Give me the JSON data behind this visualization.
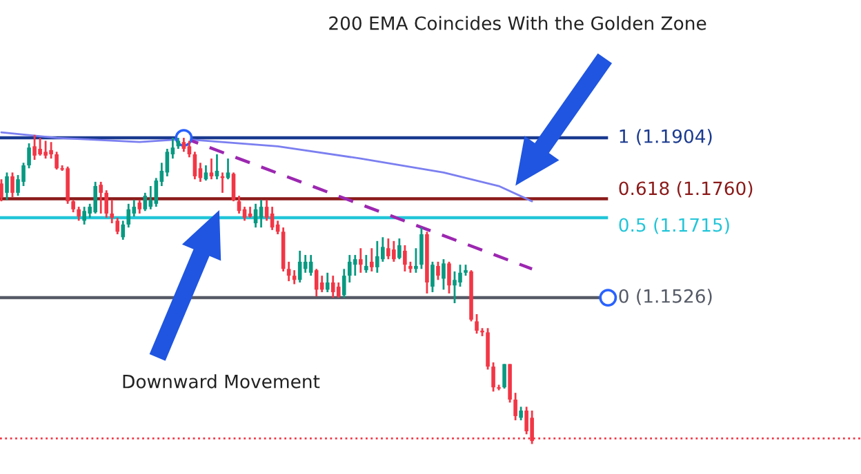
{
  "chart_data": {
    "type": "candlestick",
    "annotations": [
      "200 EMA Coincides With the Golden Zone",
      "Downward Movement"
    ],
    "categories": [
      null,
      null,
      null,
      null,
      null,
      null,
      null,
      null,
      null,
      null,
      null,
      null,
      null,
      null,
      null,
      null,
      null,
      null,
      null,
      null,
      null,
      null,
      null,
      null,
      null,
      null,
      null,
      null,
      null,
      null,
      null,
      null,
      null,
      null,
      null,
      null,
      null,
      null,
      null,
      null,
      null,
      null,
      null,
      null,
      null,
      null,
      null,
      null,
      null,
      null,
      null,
      null,
      null,
      null,
      null,
      null,
      null,
      null,
      null,
      null,
      null,
      null,
      null,
      null,
      null,
      null,
      null,
      null,
      null,
      null,
      null,
      null,
      null,
      null,
      null,
      null,
      null,
      null,
      null,
      null,
      null,
      null,
      null,
      null,
      null,
      null,
      null,
      null,
      null,
      null,
      null,
      null,
      null,
      null,
      null,
      null,
      null
    ],
    "ohlc": [
      [
        1.1796,
        1.1806,
        1.1754,
        1.1764
      ],
      [
        1.1774,
        1.1822,
        1.1757,
        1.1813
      ],
      [
        1.1813,
        1.1822,
        1.1764,
        1.1774
      ],
      [
        1.1774,
        1.1816,
        1.1767,
        1.1806
      ],
      [
        1.18,
        1.1845,
        1.179,
        1.1839
      ],
      [
        1.1839,
        1.1891,
        1.1832,
        1.1881
      ],
      [
        1.1884,
        1.1911,
        1.1852,
        1.1862
      ],
      [
        1.1878,
        1.1904,
        1.1862,
        1.1865
      ],
      [
        1.1871,
        1.1897,
        1.1855,
        1.1862
      ],
      [
        1.1875,
        1.1894,
        1.1855,
        1.1865
      ],
      [
        1.1865,
        1.1871,
        1.1829,
        1.1832
      ],
      [
        1.1832,
        1.1839,
        1.1826,
        1.1829
      ],
      [
        1.1832,
        1.1836,
        1.1748,
        1.1754
      ],
      [
        1.1754,
        1.1757,
        1.1728,
        1.1735
      ],
      [
        1.1735,
        1.1741,
        1.1708,
        1.1718
      ],
      [
        1.1708,
        1.1741,
        1.1699,
        1.1731
      ],
      [
        1.1725,
        1.1748,
        1.1715,
        1.1741
      ],
      [
        1.1728,
        1.18,
        1.1725,
        1.179
      ],
      [
        1.1793,
        1.18,
        1.1725,
        1.1774
      ],
      [
        1.1774,
        1.178,
        1.1715,
        1.1725
      ],
      [
        1.1725,
        1.1757,
        1.1702,
        1.1715
      ],
      [
        1.1708,
        1.1715,
        1.1676,
        1.1682
      ],
      [
        1.1669,
        1.1708,
        1.1663,
        1.1699
      ],
      [
        1.1699,
        1.1748,
        1.1692,
        1.1735
      ],
      [
        1.1725,
        1.1757,
        1.1718,
        1.1741
      ],
      [
        1.1751,
        1.1757,
        1.1725,
        1.1735
      ],
      [
        1.1735,
        1.1774,
        1.1731,
        1.1767
      ],
      [
        1.1741,
        1.179,
        1.1735,
        1.1757
      ],
      [
        1.1748,
        1.1809,
        1.1741,
        1.1803
      ],
      [
        1.18,
        1.1845,
        1.179,
        1.1826
      ],
      [
        1.1822,
        1.1878,
        1.1813,
        1.1871
      ],
      [
        1.1865,
        1.1904,
        1.1855,
        1.1881
      ],
      [
        1.1884,
        1.1904,
        1.1878,
        1.1897
      ],
      [
        1.1894,
        1.1904,
        1.1871,
        1.1878
      ],
      [
        1.1884,
        1.1897,
        1.1858,
        1.1865
      ],
      [
        1.1865,
        1.1871,
        1.1806,
        1.1813
      ],
      [
        1.1832,
        1.1845,
        1.18,
        1.1809
      ],
      [
        1.1806,
        1.1839,
        1.1803,
        1.1822
      ],
      [
        1.1822,
        1.1855,
        1.1806,
        1.1813
      ],
      [
        1.1813,
        1.1865,
        1.1806,
        1.1826
      ],
      [
        1.1813,
        1.1822,
        1.1774,
        1.1809
      ],
      [
        1.1809,
        1.1855,
        1.1806,
        1.1822
      ],
      [
        1.1819,
        1.1822,
        1.1754,
        1.1757
      ],
      [
        1.1754,
        1.1767,
        1.1725,
        1.1731
      ],
      [
        1.1735,
        1.1741,
        1.1708,
        1.1715
      ],
      [
        1.1725,
        1.1741,
        1.1715,
        1.1718
      ],
      [
        1.1702,
        1.1748,
        1.1692,
        1.1735
      ],
      [
        1.1715,
        1.1757,
        1.1692,
        1.1741
      ],
      [
        1.1741,
        1.1757,
        1.1708,
        1.1715
      ],
      [
        1.1725,
        1.1741,
        1.1686,
        1.1692
      ],
      [
        1.1699,
        1.1708,
        1.1676,
        1.1682
      ],
      [
        1.1682,
        1.1692,
        1.1588,
        1.1594
      ],
      [
        1.1594,
        1.1611,
        1.1565,
        1.1578
      ],
      [
        1.1578,
        1.1591,
        1.1558,
        1.1568
      ],
      [
        1.1568,
        1.1637,
        1.1562,
        1.1611
      ],
      [
        1.1594,
        1.1627,
        1.1585,
        1.1611
      ],
      [
        1.1585,
        1.1627,
        1.1578,
        1.1611
      ],
      [
        1.1591,
        1.1594,
        1.1529,
        1.1545
      ],
      [
        1.1562,
        1.1578,
        1.1539,
        1.1545
      ],
      [
        1.1545,
        1.1585,
        1.1539,
        1.1562
      ],
      [
        1.1562,
        1.1578,
        1.1526,
        1.1539
      ],
      [
        1.1552,
        1.1562,
        1.1526,
        1.1529
      ],
      [
        1.1532,
        1.1594,
        1.1526,
        1.1578
      ],
      [
        1.1578,
        1.1627,
        1.1562,
        1.1611
      ],
      [
        1.1604,
        1.1627,
        1.1578,
        1.1617
      ],
      [
        1.1617,
        1.1643,
        1.1585,
        1.1604
      ],
      [
        1.1591,
        1.1627,
        1.1585,
        1.1601
      ],
      [
        1.1611,
        1.1643,
        1.1588,
        1.1598
      ],
      [
        1.1598,
        1.166,
        1.1585,
        1.1624
      ],
      [
        1.1617,
        1.1669,
        1.1611,
        1.1646
      ],
      [
        1.1643,
        1.1666,
        1.1617,
        1.1624
      ],
      [
        1.164,
        1.166,
        1.1611,
        1.1617
      ],
      [
        1.162,
        1.1666,
        1.1617,
        1.165
      ],
      [
        1.1637,
        1.165,
        1.1588,
        1.1604
      ],
      [
        1.1601,
        1.1611,
        1.1585,
        1.1594
      ],
      [
        1.1594,
        1.1643,
        1.1585,
        1.1601
      ],
      [
        1.1604,
        1.1692,
        1.1594,
        1.1676
      ],
      [
        1.1676,
        1.1682,
        1.1536,
        1.1562
      ],
      [
        1.1552,
        1.1611,
        1.1539,
        1.1604
      ],
      [
        1.1601,
        1.1611,
        1.1568,
        1.1578
      ],
      [
        1.1571,
        1.1617,
        1.1545,
        1.1607
      ],
      [
        1.1607,
        1.1611,
        1.1536,
        1.1555
      ],
      [
        1.1555,
        1.1588,
        1.1513,
        1.1568
      ],
      [
        1.1562,
        1.1604,
        1.1552,
        1.1585
      ],
      [
        1.1585,
        1.1604,
        1.1578,
        1.1591
      ],
      [
        1.1588,
        1.1591,
        1.147,
        1.1474
      ],
      [
        1.147,
        1.1487,
        1.1441,
        1.1448
      ],
      [
        1.1448,
        1.1454,
        1.1435,
        1.1444
      ],
      [
        1.1444,
        1.1454,
        1.1356,
        1.1363
      ],
      [
        1.1363,
        1.1373,
        1.1304,
        1.1314
      ],
      [
        1.1314,
        1.132,
        1.1307,
        1.1311
      ],
      [
        1.1314,
        1.1369,
        1.1311,
        1.1369
      ],
      [
        1.1369,
        1.1369,
        1.1278,
        1.1285
      ],
      [
        1.1285,
        1.1301,
        1.1236,
        1.1246
      ],
      [
        1.1242,
        1.1268,
        1.1236,
        1.1259
      ],
      [
        1.1259,
        1.1268,
        1.1203,
        1.121
      ],
      [
        1.1242,
        1.1259,
        1.118,
        1.1187
      ]
    ],
    "series": [
      {
        "type": "line",
        "color": "#7b7ff0",
        "line_style": "solid",
        "values": [
          1.1917,
          null,
          null,
          null,
          null,
          null,
          null,
          null,
          null,
          null,
          1.1904,
          null,
          null,
          null,
          null,
          null,
          null,
          null,
          null,
          null,
          null,
          null,
          null,
          null,
          null,
          1.1894,
          null,
          null,
          null,
          null,
          null,
          null,
          null,
          1.1901,
          null,
          null,
          null,
          null,
          null,
          null,
          null,
          null,
          null,
          null,
          null,
          null,
          null,
          null,
          null,
          null,
          1.1884,
          null,
          null,
          null,
          null,
          null,
          null,
          null,
          null,
          null,
          null,
          null,
          null,
          null,
          null,
          1.1855,
          null,
          null,
          null,
          null,
          null,
          null,
          null,
          null,
          null,
          null,
          null,
          null,
          null,
          null,
          1.1822,
          null,
          null,
          null,
          null,
          null,
          null,
          null,
          null,
          null,
          1.179,
          null,
          null,
          null,
          null,
          null,
          1.1754
        ]
      },
      {
        "type": "line",
        "color": "#9c27b0",
        "line_style": "dashed",
        "values": [
          null,
          null,
          null,
          null,
          null,
          null,
          null,
          null,
          null,
          null,
          null,
          null,
          null,
          null,
          null,
          null,
          null,
          null,
          null,
          null,
          null,
          null,
          null,
          null,
          null,
          null,
          null,
          null,
          null,
          null,
          null,
          null,
          null,
          1.1904,
          null,
          null,
          null,
          null,
          null,
          null,
          null,
          null,
          null,
          null,
          null,
          null,
          null,
          null,
          null,
          null,
          null,
          null,
          null,
          null,
          null,
          null,
          null,
          null,
          null,
          null,
          null,
          null,
          null,
          null,
          null,
          null,
          null,
          null,
          null,
          null,
          null,
          null,
          null,
          null,
          null,
          null,
          null,
          null,
          null,
          null,
          null,
          null,
          null,
          null,
          null,
          null,
          null,
          null,
          null,
          null,
          null,
          null,
          null,
          null,
          null,
          null,
          1.1594
        ]
      }
    ],
    "ref_lines": [
      {
        "axis": "y",
        "value": 1.1904,
        "label": "1 (1.1904)",
        "color": "#1a3a8f",
        "line_style": "solid"
      },
      {
        "axis": "y",
        "value": 1.176,
        "label": "0.618 (1.1760)",
        "color": "#8b1a1a",
        "line_style": "solid"
      },
      {
        "axis": "y",
        "value": 1.1715,
        "label": "0.5 (1.1715)",
        "color": "#22c5d8",
        "line_style": "solid"
      },
      {
        "axis": "y",
        "value": 1.1526,
        "label": "0 (1.1526)",
        "color": "#555a66",
        "line_style": "solid"
      },
      {
        "axis": "y",
        "value": 1.1193,
        "label": null,
        "color": "#f23645",
        "line_style": "dotted"
      }
    ],
    "ylim": [
      1.1109,
      1.223
    ],
    "tick_labels": false
  }
}
